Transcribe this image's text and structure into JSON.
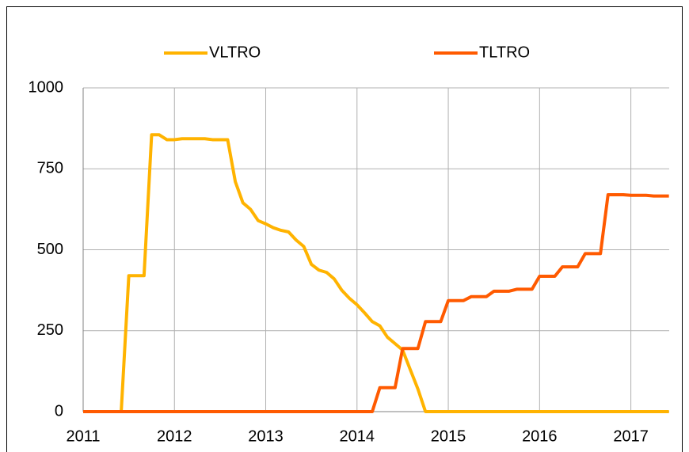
{
  "chart_data": {
    "type": "line",
    "x": [
      2011,
      2011.083,
      2011.167,
      2011.25,
      2011.333,
      2011.417,
      2011.5,
      2011.583,
      2011.667,
      2011.75,
      2011.833,
      2011.917,
      2012,
      2012.083,
      2012.167,
      2012.25,
      2012.333,
      2012.417,
      2012.5,
      2012.583,
      2012.667,
      2012.75,
      2012.833,
      2012.917,
      2013,
      2013.083,
      2013.167,
      2013.25,
      2013.333,
      2013.417,
      2013.5,
      2013.583,
      2013.667,
      2013.75,
      2013.833,
      2013.917,
      2014,
      2014.083,
      2014.167,
      2014.25,
      2014.333,
      2014.417,
      2014.5,
      2014.583,
      2014.667,
      2014.75,
      2014.833,
      2014.917,
      2015,
      2015.083,
      2015.167,
      2015.25,
      2015.333,
      2015.417,
      2015.5,
      2015.583,
      2015.667,
      2015.75,
      2015.833,
      2015.917,
      2016,
      2016.083,
      2016.167,
      2016.25,
      2016.333,
      2016.417,
      2016.5,
      2016.583,
      2016.667,
      2016.75,
      2016.833,
      2016.917,
      2017,
      2017.083,
      2017.167,
      2017.25,
      2017.333,
      2017.417
    ],
    "series": [
      {
        "name": "VLTRO",
        "color": "#ffb300",
        "values": [
          0,
          0,
          0,
          0,
          0,
          0,
          420,
          420,
          420,
          855,
          855,
          840,
          840,
          843,
          843,
          843,
          843,
          840,
          840,
          840,
          710,
          645,
          625,
          590,
          580,
          568,
          560,
          555,
          530,
          510,
          455,
          437,
          430,
          410,
          375,
          350,
          330,
          305,
          278,
          265,
          230,
          210,
          190,
          130,
          70,
          0,
          0,
          0,
          0,
          0,
          0,
          0,
          0,
          0,
          0,
          0,
          0,
          0,
          0,
          0,
          0,
          0,
          0,
          0,
          0,
          0,
          0,
          0,
          0,
          0,
          0,
          0,
          0,
          0,
          0,
          0,
          0,
          0
        ]
      },
      {
        "name": "TLTRO",
        "color": "#ff5a00",
        "values": [
          0,
          0,
          0,
          0,
          0,
          0,
          0,
          0,
          0,
          0,
          0,
          0,
          0,
          0,
          0,
          0,
          0,
          0,
          0,
          0,
          0,
          0,
          0,
          0,
          0,
          0,
          0,
          0,
          0,
          0,
          0,
          0,
          0,
          0,
          0,
          0,
          0,
          0,
          0,
          74,
          74,
          74,
          195,
          195,
          195,
          278,
          278,
          278,
          343,
          343,
          343,
          355,
          355,
          355,
          372,
          372,
          372,
          378,
          378,
          378,
          418,
          418,
          418,
          447,
          447,
          447,
          488,
          488,
          488,
          670,
          670,
          670,
          668,
          668,
          668,
          666,
          666,
          666
        ]
      }
    ],
    "xlim": [
      2011,
      2017.42
    ],
    "xticks": [
      2011,
      2012,
      2013,
      2014,
      2015,
      2016,
      2017
    ],
    "ylim": [
      0,
      1000
    ],
    "yticks": [
      0,
      250,
      500,
      750,
      1000
    ],
    "grid": true,
    "legend": "top"
  }
}
